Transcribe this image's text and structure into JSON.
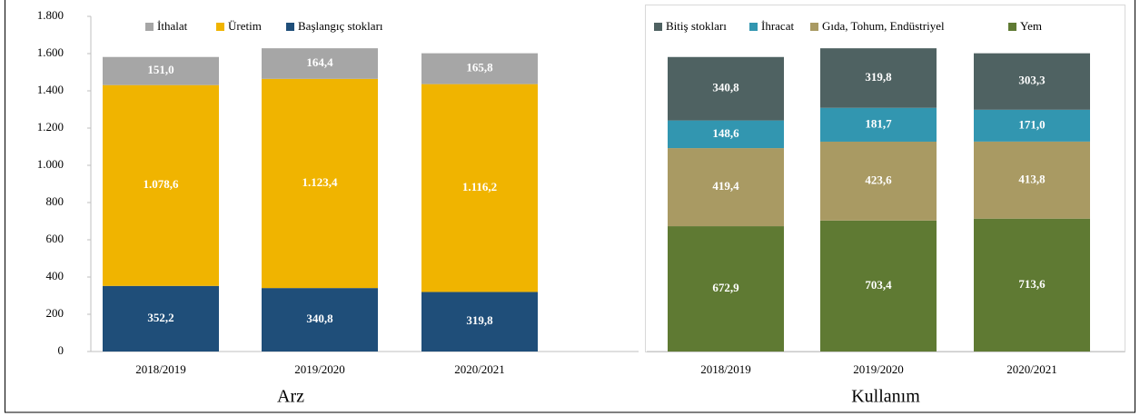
{
  "chart_data": [
    {
      "type": "stacked-bar",
      "title": "Arz",
      "categories": [
        "2018/2019",
        "2019/2020",
        "2020/2021"
      ],
      "series": [
        {
          "name": "Başlangıç stokları",
          "color": "#1f4e79",
          "values": [
            352.2,
            340.8,
            319.8
          ],
          "value_labels": [
            "352,2",
            "340,8",
            "319,8"
          ]
        },
        {
          "name": "Üretim",
          "color": "#f0b400",
          "values": [
            1078.6,
            1123.4,
            1116.2
          ],
          "value_labels": [
            "1.078,6",
            "1.123,4",
            "1.116,2"
          ]
        },
        {
          "name": "İthalat",
          "color": "#a6a6a6",
          "values": [
            151.0,
            164.4,
            165.8
          ],
          "value_labels": [
            "151,0",
            "164,4",
            "165,8"
          ]
        }
      ],
      "ylim": [
        0,
        1800
      ],
      "yticks": [
        0,
        200,
        400,
        600,
        800,
        {
          "value": 1000,
          "label": "1.000"
        },
        {
          "value": 1200,
          "label": "1.200"
        },
        {
          "value": 1400,
          "label": "1.400"
        },
        {
          "value": 1600,
          "label": "1.600"
        },
        {
          "value": 1800,
          "label": "1.800"
        }
      ],
      "legend": "top"
    },
    {
      "type": "stacked-bar",
      "title": "Kullanım",
      "categories": [
        "2018/2019",
        "2019/2020",
        "2020/2021"
      ],
      "series": [
        {
          "name": "Yem",
          "color": "#5f7a33",
          "values": [
            672.9,
            703.4,
            713.6
          ],
          "value_labels": [
            "672,9",
            "703,4",
            "713,6"
          ]
        },
        {
          "name": "Gıda, Tohum, Endüstriyel",
          "color": "#a99a63",
          "values": [
            419.4,
            423.6,
            413.8
          ],
          "value_labels": [
            "419,4",
            "423,6",
            "413,8"
          ]
        },
        {
          "name": "İhracat",
          "color": "#3296b0",
          "values": [
            148.6,
            181.7,
            171.0
          ],
          "value_labels": [
            "148,6",
            "181,7",
            "171,0"
          ]
        },
        {
          "name": "Bitiş stokları",
          "color": "#4f6262",
          "values": [
            340.8,
            319.8,
            303.3
          ],
          "value_labels": [
            "340,8",
            "319,8",
            "303,3"
          ]
        }
      ],
      "ylim": [
        0,
        1800
      ],
      "legend": "top"
    }
  ]
}
